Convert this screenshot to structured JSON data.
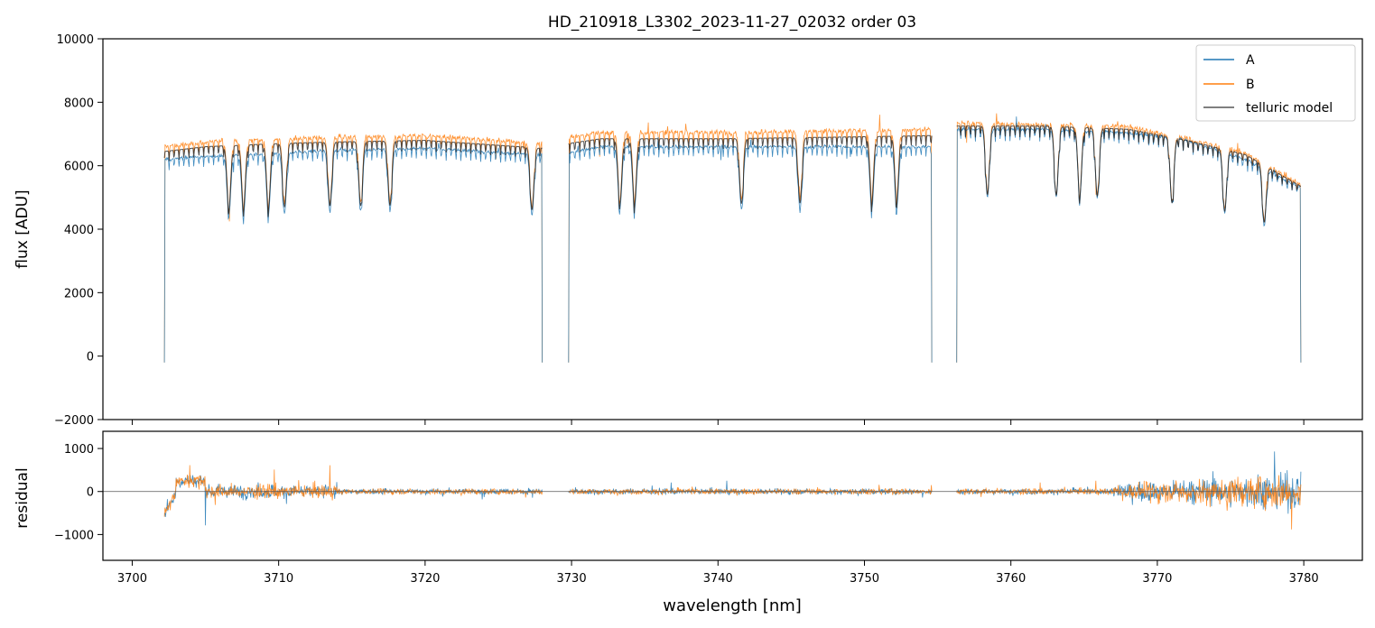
{
  "figure": {
    "title": "HD_210918_L3302_2023-11-27_02032  order 03"
  },
  "colors": {
    "A": "#1f77b4",
    "B": "#ff7f0e",
    "telluric": "#222222",
    "zero_line": "#555555"
  },
  "chart_data": [
    {
      "type": "line",
      "panel": "top",
      "title": "HD_210918_L3302_2023-11-27_02032  order 03",
      "xlabel": "",
      "ylabel": "flux [ADU]",
      "xlim": [
        3698,
        3784
      ],
      "ylim": [
        -2000,
        10000
      ],
      "yticks": [
        -2000,
        0,
        2000,
        4000,
        6000,
        8000,
        10000
      ],
      "ytick_labels": [
        "−2000",
        "0",
        "2000",
        "4000",
        "6000",
        "8000",
        "10000"
      ],
      "xticks": [
        3700,
        3710,
        3720,
        3730,
        3740,
        3750,
        3760,
        3770,
        3780
      ],
      "legend": {
        "placement": "top-right",
        "entries": [
          "A",
          "B",
          "telluric model"
        ]
      },
      "segments": [
        [
          3702.2,
          3728.0
        ],
        [
          3729.8,
          3754.6
        ],
        [
          3756.3,
          3779.8
        ]
      ],
      "absorption_lines_nm": [
        3706.6,
        3707.6,
        3709.3,
        3710.4,
        3713.5,
        3715.6,
        3717.6,
        3727.3,
        3733.3,
        3734.3,
        3741.6,
        3745.6,
        3750.5,
        3752.2,
        3758.4,
        3763.1,
        3764.7,
        3765.9,
        3771.0,
        3774.6,
        3777.3
      ],
      "series": [
        {
          "name": "A",
          "continuum": {
            "x": [
              3702.2,
              3705,
              3710,
              3714,
              3720,
              3728,
              3729.8,
              3732,
              3740,
              3748,
              3754.6,
              3756.3,
              3762,
              3768,
              3772,
              3776,
              3779.8
            ],
            "y": [
              6200,
              6300,
              6400,
              6500,
              6550,
              6350,
              6400,
              6600,
              6600,
              6600,
              6600,
              7150,
              7150,
              7050,
              6800,
              6200,
              5300
            ]
          }
        },
        {
          "name": "B",
          "continuum": {
            "x": [
              3702.2,
              3705,
              3710,
              3714,
              3720,
              3728,
              3729.8,
              3732,
              3740,
              3748,
              3754.6,
              3756.3,
              3762,
              3768,
              3772,
              3776,
              3779.8
            ],
            "y": [
              6600,
              6750,
              6850,
              6900,
              6950,
              6700,
              6900,
              7050,
              7050,
              7100,
              7150,
              7350,
              7300,
              7250,
              6850,
              6400,
              5400
            ]
          }
        },
        {
          "name": "telluric model",
          "continuum": {
            "x": [
              3702.2,
              3705,
              3710,
              3714,
              3720,
              3728,
              3729.8,
              3732,
              3740,
              3748,
              3754.6,
              3756.3,
              3762,
              3768,
              3772,
              3776,
              3779.8
            ],
            "y": [
              6450,
              6600,
              6700,
              6750,
              6800,
              6550,
              6700,
              6850,
              6850,
              6900,
              6950,
              7250,
              7250,
              7150,
              6800,
              6350,
              5350
            ]
          }
        }
      ]
    },
    {
      "type": "line",
      "panel": "bottom",
      "xlabel": "wavelength [nm]",
      "ylabel": "residual",
      "xlim": [
        3698,
        3784
      ],
      "ylim": [
        -1600,
        1400
      ],
      "yticks": [
        -1000,
        0,
        1000
      ],
      "ytick_labels": [
        "−1000",
        "0",
        "1000"
      ],
      "xticks": [
        3700,
        3710,
        3720,
        3730,
        3740,
        3750,
        3760,
        3770,
        3780
      ],
      "xtick_labels": [
        "3700",
        "3710",
        "3720",
        "3730",
        "3740",
        "3750",
        "3760",
        "3770",
        "3780"
      ],
      "series": [
        {
          "name": "A",
          "noise_scale": [
            120,
            80,
            150,
            300,
            600
          ]
        },
        {
          "name": "B",
          "noise_scale": [
            140,
            90,
            160,
            320,
            620
          ]
        }
      ]
    }
  ]
}
